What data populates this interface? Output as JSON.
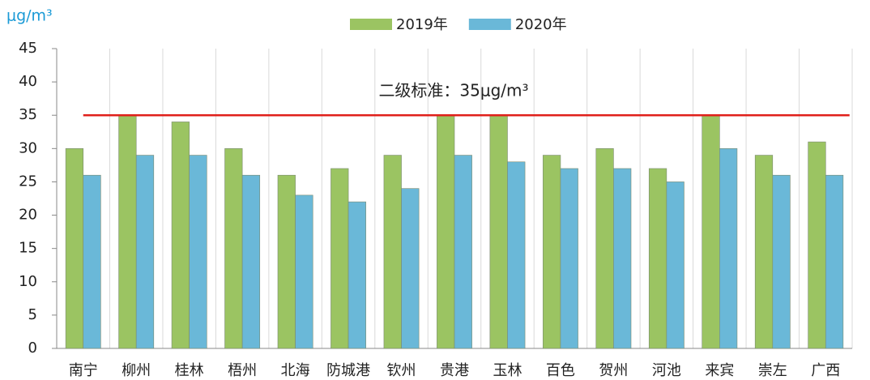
{
  "chart_data": {
    "type": "bar",
    "y_unit": "μg/m³",
    "categories": [
      "南宁",
      "柳州",
      "桂林",
      "梧州",
      "北海",
      "防城港",
      "钦州",
      "贵港",
      "玉林",
      "百色",
      "贺州",
      "河池",
      "来宾",
      "崇左",
      "广西"
    ],
    "series": [
      {
        "name": "2019年",
        "color": "#9bc462",
        "values": [
          30,
          35,
          34,
          30,
          26,
          27,
          29,
          35,
          35,
          29,
          30,
          27,
          35,
          29,
          31
        ]
      },
      {
        "name": "2020年",
        "color": "#6ab8d8",
        "values": [
          26,
          29,
          29,
          26,
          23,
          22,
          24,
          29,
          28,
          27,
          27,
          25,
          30,
          26,
          26
        ]
      }
    ],
    "reference_line": {
      "value": 35,
      "label": "二级标准：35μg/m³",
      "color": "#e0201b"
    },
    "ylim": [
      0,
      45
    ],
    "yticks": [
      0,
      5,
      10,
      15,
      20,
      25,
      30,
      35,
      40,
      45
    ],
    "legend": "top",
    "grid": "vertical"
  }
}
